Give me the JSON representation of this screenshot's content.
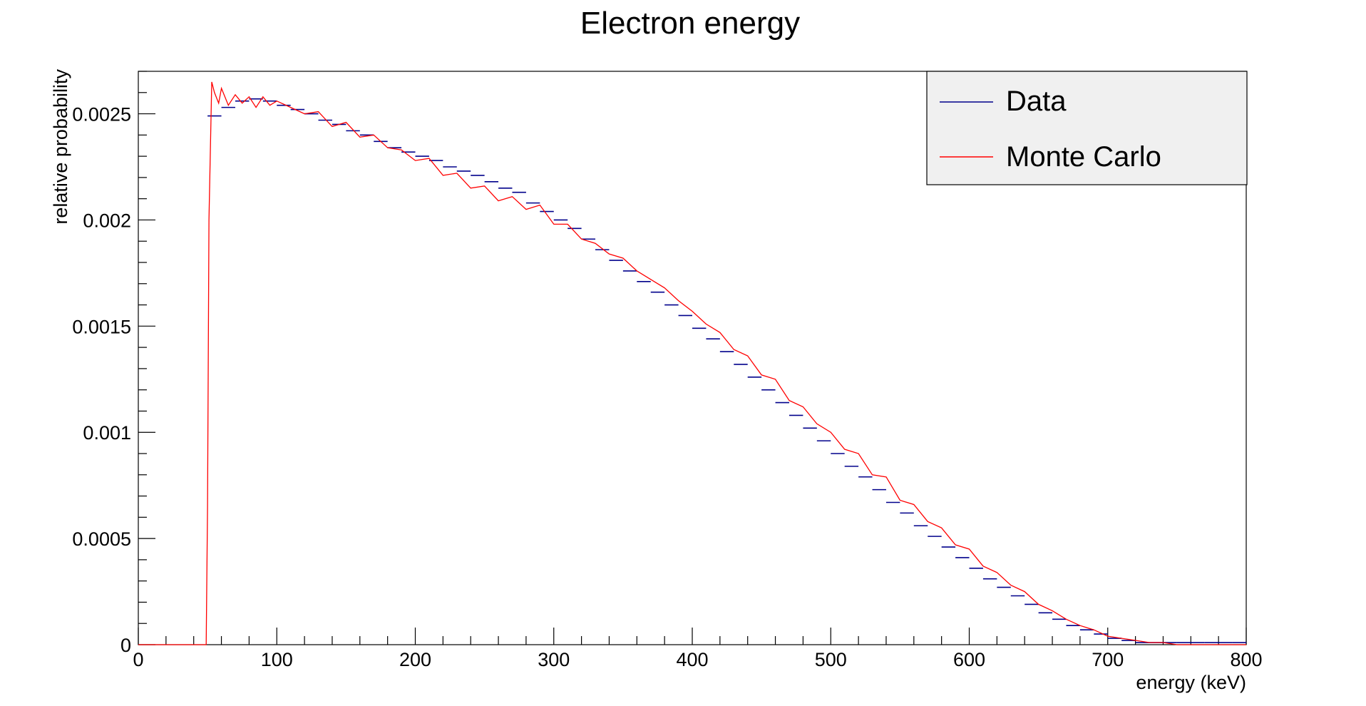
{
  "chart_data": {
    "type": "line",
    "title": "Electron energy",
    "xlabel": "energy (keV)",
    "ylabel": "relative probability",
    "xlim": [
      0,
      800
    ],
    "ylim": [
      0,
      0.0027
    ],
    "x_ticks": [
      0,
      100,
      200,
      300,
      400,
      500,
      600,
      700,
      800
    ],
    "y_ticks": [
      0,
      0.0005,
      0.001,
      0.0015,
      0.002,
      0.0025
    ],
    "x_tick_labels": [
      "0",
      "100",
      "200",
      "300",
      "400",
      "500",
      "600",
      "700",
      "800"
    ],
    "y_tick_labels": [
      "0",
      "0.0005",
      "0.001",
      "0.0015",
      "0.002",
      "0.0025"
    ],
    "grid": false,
    "legend_position": "top-right",
    "series": [
      {
        "name": "Data",
        "color": "#00008b",
        "style": "binned-markers",
        "bin_width": 10,
        "x": [
          55,
          65,
          75,
          85,
          95,
          105,
          115,
          125,
          135,
          145,
          155,
          165,
          175,
          185,
          195,
          205,
          215,
          225,
          235,
          245,
          255,
          265,
          275,
          285,
          295,
          305,
          315,
          325,
          335,
          345,
          355,
          365,
          375,
          385,
          395,
          405,
          415,
          425,
          435,
          445,
          455,
          465,
          475,
          485,
          495,
          505,
          515,
          525,
          535,
          545,
          555,
          565,
          575,
          585,
          595,
          605,
          615,
          625,
          635,
          645,
          655,
          665,
          675,
          685,
          695,
          705,
          715,
          725,
          735,
          745,
          755,
          765,
          775,
          785,
          795
        ],
        "y": [
          0.00249,
          0.00253,
          0.00256,
          0.00257,
          0.00256,
          0.00254,
          0.00252,
          0.0025,
          0.00247,
          0.00245,
          0.00242,
          0.0024,
          0.00237,
          0.00234,
          0.00232,
          0.0023,
          0.00228,
          0.00225,
          0.00223,
          0.00221,
          0.00218,
          0.00215,
          0.00213,
          0.00208,
          0.00204,
          0.002,
          0.00196,
          0.00191,
          0.00186,
          0.00181,
          0.00176,
          0.00171,
          0.00166,
          0.0016,
          0.00155,
          0.00149,
          0.00144,
          0.00138,
          0.00132,
          0.00126,
          0.0012,
          0.00114,
          0.00108,
          0.00102,
          0.00096,
          0.0009,
          0.00084,
          0.00079,
          0.00073,
          0.00067,
          0.00062,
          0.00056,
          0.00051,
          0.00046,
          0.00041,
          0.00036,
          0.00031,
          0.00027,
          0.00023,
          0.00019,
          0.00015,
          0.00012,
          9e-05,
          7e-05,
          5e-05,
          3e-05,
          2e-05,
          1e-05,
          1e-05,
          1e-05,
          1e-05,
          1e-05,
          1e-05,
          1e-05,
          1e-05
        ]
      },
      {
        "name": "Monte Carlo",
        "color": "#ff0000",
        "style": "line",
        "x": [
          0,
          45,
          49,
          50,
          51,
          53,
          55,
          58,
          60,
          65,
          70,
          75,
          80,
          85,
          90,
          95,
          100,
          110,
          120,
          130,
          140,
          150,
          160,
          170,
          180,
          190,
          200,
          210,
          220,
          230,
          240,
          250,
          260,
          270,
          280,
          290,
          300,
          310,
          320,
          330,
          340,
          350,
          360,
          370,
          380,
          390,
          400,
          410,
          420,
          430,
          440,
          450,
          460,
          470,
          480,
          490,
          500,
          510,
          520,
          530,
          540,
          550,
          560,
          570,
          580,
          590,
          600,
          610,
          620,
          630,
          640,
          650,
          660,
          670,
          680,
          690,
          700,
          710,
          720,
          730,
          740,
          750,
          760,
          770,
          780,
          790,
          800
        ],
        "y": [
          0,
          0,
          0,
          0.00065,
          0.002,
          0.00265,
          0.0026,
          0.00255,
          0.00262,
          0.00254,
          0.00259,
          0.00255,
          0.00258,
          0.00253,
          0.00258,
          0.00254,
          0.00256,
          0.00253,
          0.0025,
          0.00251,
          0.00244,
          0.00246,
          0.00239,
          0.0024,
          0.00234,
          0.00233,
          0.00228,
          0.00229,
          0.00221,
          0.00222,
          0.00215,
          0.00216,
          0.00209,
          0.00211,
          0.00205,
          0.00207,
          0.00198,
          0.00198,
          0.00191,
          0.00189,
          0.00184,
          0.00182,
          0.00176,
          0.00172,
          0.00168,
          0.00162,
          0.00157,
          0.00151,
          0.00147,
          0.00139,
          0.00136,
          0.00127,
          0.00125,
          0.00115,
          0.00112,
          0.00104,
          0.001,
          0.00092,
          0.0009,
          0.0008,
          0.00079,
          0.00068,
          0.00066,
          0.00058,
          0.00055,
          0.00047,
          0.00045,
          0.00037,
          0.00034,
          0.00028,
          0.00025,
          0.00019,
          0.00016,
          0.00012,
          9e-05,
          7e-05,
          4e-05,
          3e-05,
          2e-05,
          1e-05,
          1e-05,
          0.0,
          0.0,
          0.0,
          0.0,
          0.0,
          0.0
        ]
      }
    ]
  }
}
